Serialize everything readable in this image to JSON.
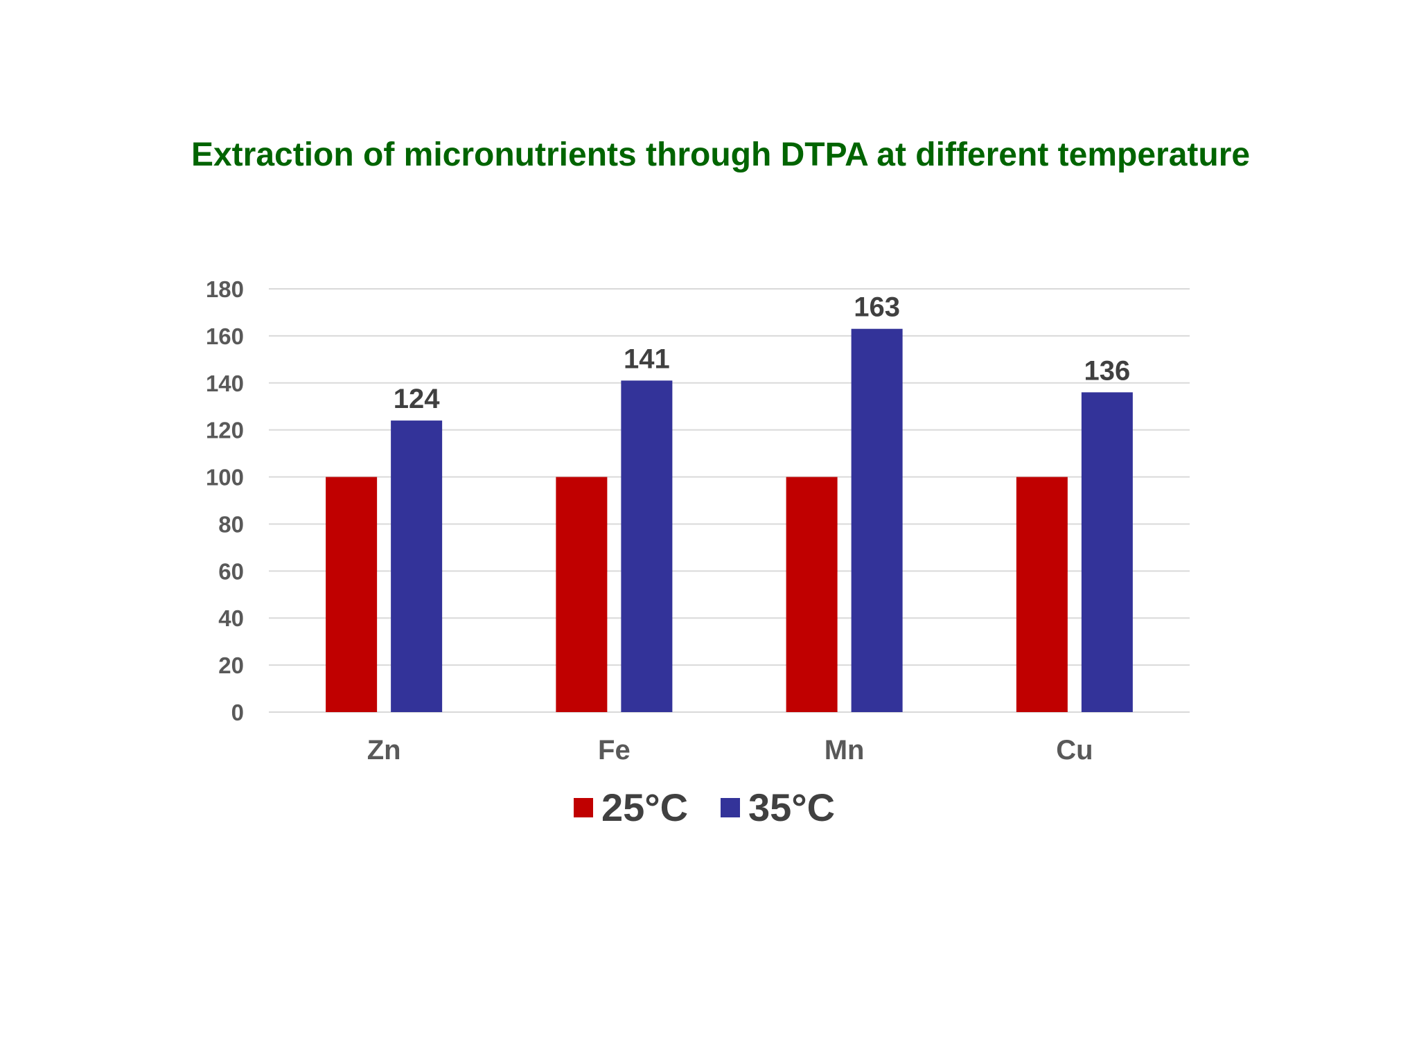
{
  "chart_data": {
    "type": "bar",
    "title": "Extraction of micronutrients through DTPA at different temperature",
    "categories": [
      "Zn",
      "Fe",
      "Mn",
      "Cu"
    ],
    "series": [
      {
        "name": "25°C",
        "values": [
          100,
          100,
          100,
          100
        ],
        "color": "#C00000",
        "show_labels": false
      },
      {
        "name": "35°C",
        "values": [
          124,
          141,
          163,
          136
        ],
        "color": "#333399",
        "show_labels": true
      }
    ],
    "ylim": [
      0,
      180
    ],
    "yticks": [
      "0",
      "20",
      "40",
      "60",
      "80",
      "100",
      "120",
      "140",
      "160",
      "180"
    ],
    "grid": true,
    "gridline_color": "#D9D9D9",
    "legend": "bottom"
  }
}
